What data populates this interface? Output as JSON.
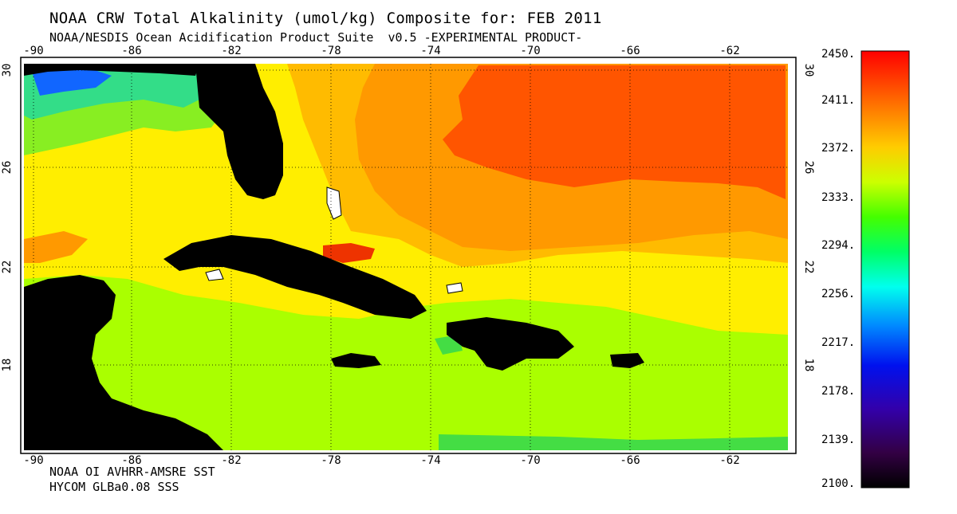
{
  "title": "NOAA CRW Total Alkalinity (umol/kg) Composite for: FEB 2011",
  "subtitle": "NOAA/NESDIS Ocean Acidification Product Suite  v0.5 -EXPERIMENTAL PRODUCT-",
  "sources": [
    "NOAA OI AVHRR-AMSRE SST",
    "HYCOM GLBa0.08 SSS"
  ],
  "lon_ticks": [
    "-90",
    "-86",
    "-82",
    "-78",
    "-74",
    "-70",
    "-66",
    "-62"
  ],
  "lat_ticks": [
    "30",
    "26",
    "22",
    "18"
  ],
  "colorbar": {
    "labels": [
      "2450.",
      "2411.",
      "2372.",
      "2333.",
      "2294.",
      "2256.",
      "2217.",
      "2178.",
      "2139.",
      "2100."
    ],
    "colors": [
      "#ff0000",
      "#ff6600",
      "#ffbb00",
      "#ffff00",
      "#aaff00",
      "#00ff33",
      "#00ffcc",
      "#00aaff",
      "#0033ff",
      "#2200cc",
      "#550088",
      "#000000"
    ]
  },
  "map_colors": {
    "land": "#000000",
    "high_orange": "#ff5500",
    "orange": "#ff9900",
    "light_orange": "#ffbb00",
    "yellow": "#ffee00",
    "lime": "#aaff00",
    "green": "#44dd44",
    "cyan": "#22ddaa",
    "blue": "#1166ff",
    "dark_red": "#ee3300"
  }
}
